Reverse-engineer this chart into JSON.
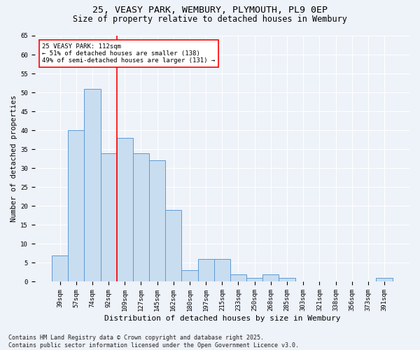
{
  "title_line1": "25, VEASY PARK, WEMBURY, PLYMOUTH, PL9 0EP",
  "title_line2": "Size of property relative to detached houses in Wembury",
  "xlabel": "Distribution of detached houses by size in Wembury",
  "ylabel": "Number of detached properties",
  "categories": [
    "39sqm",
    "57sqm",
    "74sqm",
    "92sqm",
    "109sqm",
    "127sqm",
    "145sqm",
    "162sqm",
    "180sqm",
    "197sqm",
    "215sqm",
    "233sqm",
    "250sqm",
    "268sqm",
    "285sqm",
    "303sqm",
    "321sqm",
    "338sqm",
    "356sqm",
    "373sqm",
    "391sqm"
  ],
  "values": [
    7,
    40,
    51,
    34,
    38,
    34,
    32,
    19,
    3,
    6,
    6,
    2,
    1,
    2,
    1,
    0,
    0,
    0,
    0,
    0,
    1
  ],
  "bar_color": "#c9ddf0",
  "bar_edge_color": "#5b9bd5",
  "ref_line_index": 3.5,
  "annotation_line1": "25 VEASY PARK: 112sqm",
  "annotation_line2": "← 51% of detached houses are smaller (138)",
  "annotation_line3": "49% of semi-detached houses are larger (131) →",
  "annotation_box_color": "white",
  "annotation_box_edge_color": "red",
  "ref_line_color": "red",
  "ylim_max": 65,
  "yticks": [
    0,
    5,
    10,
    15,
    20,
    25,
    30,
    35,
    40,
    45,
    50,
    55,
    60,
    65
  ],
  "footer_line1": "Contains HM Land Registry data © Crown copyright and database right 2025.",
  "footer_line2": "Contains public sector information licensed under the Open Government Licence v3.0.",
  "background_color": "#eef2f9",
  "grid_color": "#ffffff",
  "title1_fontsize": 9.5,
  "title2_fontsize": 8.5,
  "tick_fontsize": 6.5,
  "ylabel_fontsize": 7.5,
  "xlabel_fontsize": 8,
  "annot_fontsize": 6.5,
  "footer_fontsize": 6
}
